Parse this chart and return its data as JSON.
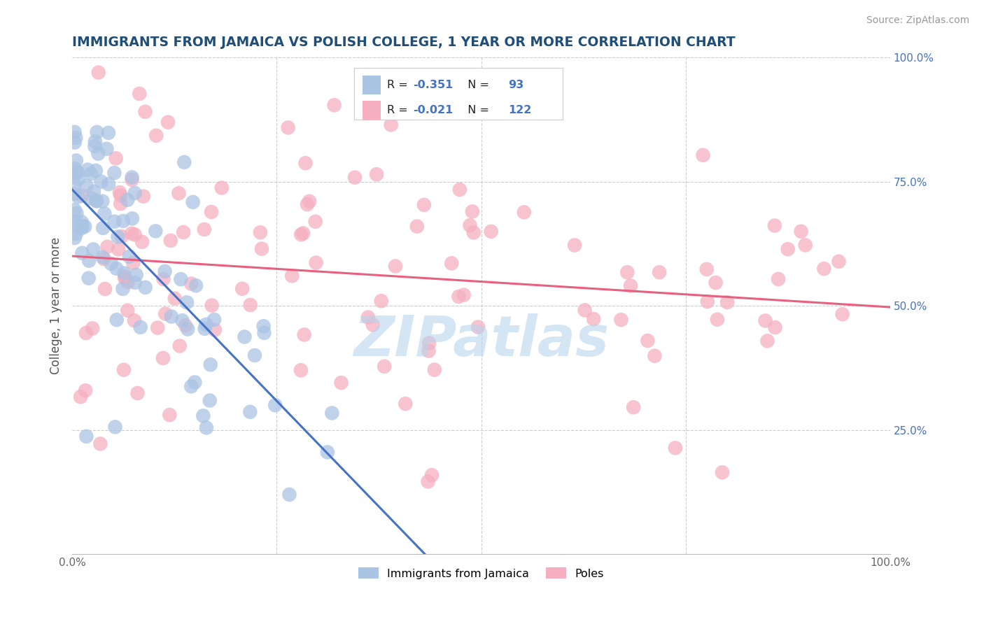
{
  "title": "IMMIGRANTS FROM JAMAICA VS POLISH COLLEGE, 1 YEAR OR MORE CORRELATION CHART",
  "source_text": "Source: ZipAtlas.com",
  "ylabel": "College, 1 year or more",
  "legend_label1": "Immigrants from Jamaica",
  "legend_label2": "Poles",
  "r1": -0.351,
  "n1": 93,
  "r2": -0.021,
  "n2": 122,
  "color1": "#aac4e4",
  "color2": "#f5afc0",
  "line1_color": "#4472c4",
  "line2_color": "#e86080",
  "title_color": "#1f4e79",
  "watermark_color": "#b8d4ee",
  "right_tick_color": "#4472c4",
  "legend_text_color": "#222222",
  "legend_value_color": "#4472c4",
  "xlim": [
    0.0,
    1.0
  ],
  "ylim": [
    0.0,
    1.0
  ],
  "xtick_labels": [
    "0.0%",
    "",
    "",
    "",
    "100.0%"
  ],
  "ytick_labels_right": [
    "25.0%",
    "50.0%",
    "75.0%",
    "100.0%"
  ],
  "grid_color": "#cccccc",
  "source_color": "#999999"
}
